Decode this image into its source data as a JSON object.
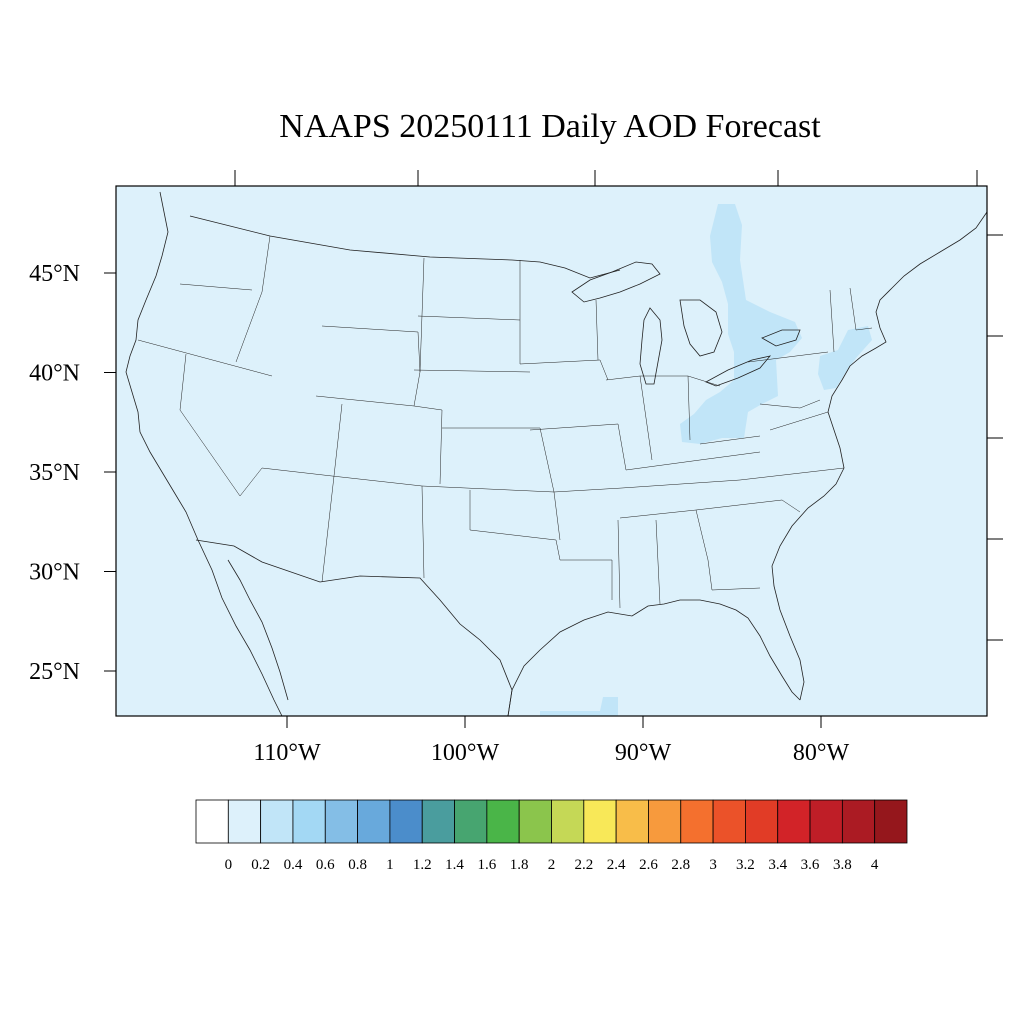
{
  "title": "NAAPS 20250111 Daily AOD Forecast",
  "map": {
    "background_color": "#ddf1fb",
    "plume_color": "#c1e5f8",
    "lat_ticks": [
      {
        "value": 45,
        "label": "45°N"
      },
      {
        "value": 40,
        "label": "40°N"
      },
      {
        "value": 35,
        "label": "35°N"
      },
      {
        "value": 30,
        "label": "30°N"
      },
      {
        "value": 25,
        "label": "25°N"
      }
    ],
    "lon_ticks": [
      {
        "value": -110,
        "label": "110°W"
      },
      {
        "value": -100,
        "label": "100°W"
      },
      {
        "value": -90,
        "label": "90°W"
      },
      {
        "value": -80,
        "label": "80°W"
      }
    ]
  },
  "colorbar": {
    "colors": [
      "#ffffff",
      "#ddf1fb",
      "#c1e5f8",
      "#a3d8f4",
      "#84bee6",
      "#68a9dc",
      "#4b8dcb",
      "#4a9d9e",
      "#47a570",
      "#4ab548",
      "#8bc54c",
      "#c5d856",
      "#f8e858",
      "#f8bd49",
      "#f79a3d",
      "#f4702e",
      "#eb5229",
      "#e13c26",
      "#d22328",
      "#bf1e27",
      "#ab1b23",
      "#95171c"
    ],
    "labels": [
      "0",
      "0.2",
      "0.4",
      "0.6",
      "0.8",
      "1",
      "1.2",
      "1.4",
      "1.6",
      "1.8",
      "2",
      "2.2",
      "2.4",
      "2.6",
      "2.8",
      "3",
      "3.2",
      "3.4",
      "3.6",
      "3.8",
      "4"
    ]
  }
}
